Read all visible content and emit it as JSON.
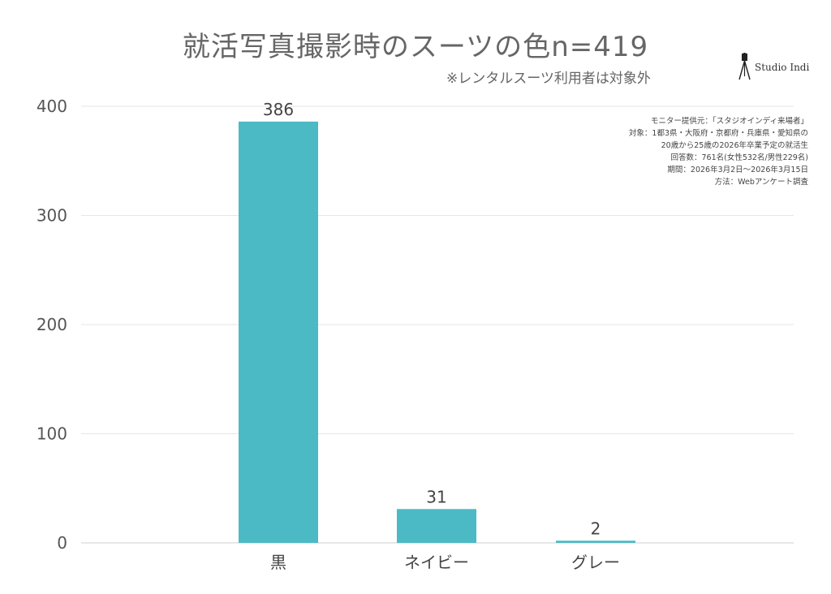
{
  "header": {
    "title": "就活写真撮影時のスーツの色",
    "n": "n=419",
    "subtitle": "※レンタルスーツ利用者は対象外"
  },
  "logo": {
    "text": "Studio Indi",
    "icon": "camera-tripod-icon"
  },
  "notes": [
    "モニター提供元：「スタジオインディ来場者」",
    "対象：1都3県・大阪府・京都府・兵庫県・愛知県の",
    "20歳から25歳の2026年卒業予定の就活生",
    "回答数：761名(女性532名/男性229名)",
    "期間：2026年3月2日〜2026年3月15日",
    "方法：Webアンケート調査"
  ],
  "chart_data": {
    "type": "bar",
    "title": "就活写真撮影時のスーツの色",
    "categories": [
      "黒",
      "ネイビー",
      "グレー"
    ],
    "values": [
      386,
      31,
      2
    ],
    "ylim": [
      0,
      400
    ],
    "yticks": [
      0,
      100,
      200,
      300,
      400
    ],
    "grid": true,
    "bar_color": "#4BBAC5",
    "data_labels": true
  }
}
